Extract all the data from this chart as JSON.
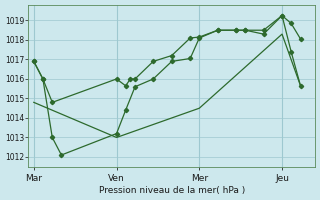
{
  "bg_color": "#cde8ed",
  "grid_color": "#9ec8d0",
  "line_color": "#2d6a2d",
  "marker_color": "#2d6a2d",
  "xlabel": "Pression niveau de la mer( hPa )",
  "ylim": [
    1011.5,
    1019.8
  ],
  "yticks": [
    1012,
    1013,
    1014,
    1015,
    1016,
    1017,
    1018,
    1019
  ],
  "xtick_labels": [
    "Mar",
    "Ven",
    "Mer",
    "Jeu"
  ],
  "xtick_pos": [
    0,
    3,
    6,
    9
  ],
  "vline_pos": [
    0,
    3,
    6,
    9
  ],
  "series1_x": [
    0,
    0.33,
    0.67,
    3.0,
    3.33,
    3.5,
    3.67,
    4.33,
    5.0,
    5.67,
    6.0,
    6.67,
    7.33,
    7.67,
    8.33,
    9.0,
    9.33,
    9.67
  ],
  "series1_y": [
    1016.9,
    1016.0,
    1014.8,
    1016.0,
    1015.65,
    1016.0,
    1016.0,
    1016.9,
    1017.2,
    1018.1,
    1018.15,
    1018.5,
    1018.5,
    1018.5,
    1018.3,
    1019.25,
    1018.85,
    1018.05
  ],
  "series2_x": [
    0,
    0.33,
    0.67,
    1.0,
    3.0,
    3.33,
    3.67,
    4.33,
    5.0,
    5.67,
    6.0,
    6.67,
    7.33,
    7.67,
    8.33,
    9.0,
    9.33,
    9.67
  ],
  "series2_y": [
    1016.9,
    1016.0,
    1013.0,
    1012.1,
    1013.2,
    1014.4,
    1015.6,
    1016.0,
    1016.9,
    1017.05,
    1018.1,
    1018.5,
    1018.5,
    1018.5,
    1018.5,
    1019.25,
    1017.4,
    1015.65
  ],
  "series3_x": [
    0,
    3.0,
    6.0,
    9.0,
    9.67
  ],
  "series3_y": [
    1014.8,
    1013.0,
    1014.5,
    1018.3,
    1015.65
  ],
  "xlim": [
    -0.2,
    10.2
  ],
  "figsize": [
    3.2,
    2.0
  ],
  "dpi": 100
}
